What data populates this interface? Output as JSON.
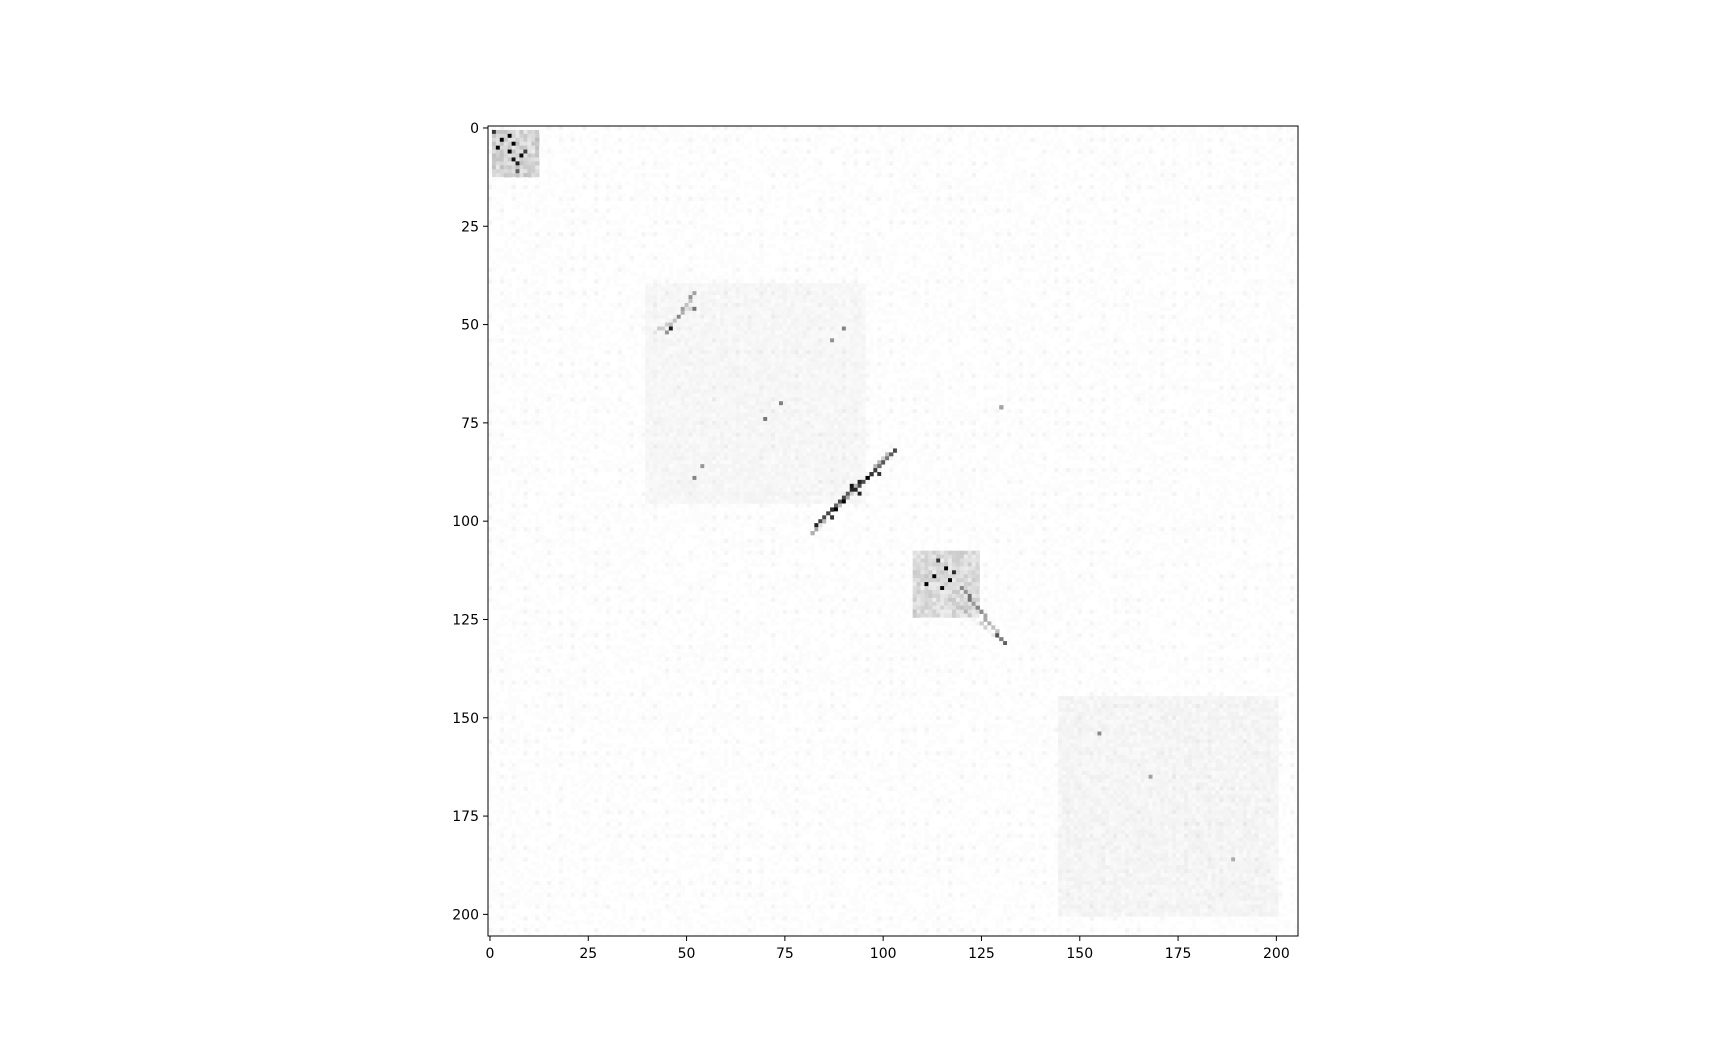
{
  "chart_data": {
    "type": "heatmap",
    "colormap": "Greys",
    "background_color": "#ffffff",
    "axis_color": "#000000",
    "matrix_size": 206,
    "xlim": [
      -0.5,
      205.5
    ],
    "ylim": [
      205.5,
      -0.5
    ],
    "y_axis_inverted": true,
    "grid": false,
    "title": "",
    "xlabel": "",
    "ylabel": "",
    "x_ticks": [
      0,
      25,
      50,
      75,
      100,
      125,
      150,
      175,
      200
    ],
    "y_ticks": [
      0,
      25,
      50,
      75,
      100,
      125,
      150,
      175,
      200
    ],
    "x_tick_labels": [
      "0",
      "25",
      "50",
      "75",
      "100",
      "125",
      "150",
      "175",
      "200"
    ],
    "y_tick_labels": [
      "0",
      "25",
      "50",
      "75",
      "100",
      "125",
      "150",
      "175",
      "200"
    ],
    "value_range": [
      0,
      1
    ],
    "blocks": [
      {
        "rows": [
          1,
          12
        ],
        "cols": [
          1,
          12
        ],
        "intensity": 0.25
      },
      {
        "rows": [
          108,
          124
        ],
        "cols": [
          108,
          124
        ],
        "intensity": 0.2
      },
      {
        "rows": [
          145,
          200
        ],
        "cols": [
          145,
          200
        ],
        "intensity": 0.05
      },
      {
        "rows": [
          40,
          95
        ],
        "cols": [
          40,
          95
        ],
        "intensity": 0.04
      }
    ],
    "diagonal_streaks": [
      {
        "from": [
          82,
          103
        ],
        "to": [
          101,
          83
        ],
        "intensity": 0.85
      },
      {
        "from": [
          117,
          120
        ],
        "to": [
          131,
          131
        ],
        "intensity": 0.45
      },
      {
        "from": [
          42,
          52
        ],
        "to": [
          52,
          45
        ],
        "intensity": 0.4
      }
    ],
    "hotspots": [
      {
        "row": 3,
        "col": 3,
        "value": 0.95
      },
      {
        "row": 5,
        "col": 2,
        "value": 0.9
      },
      {
        "row": 4,
        "col": 6,
        "value": 0.85
      },
      {
        "row": 6,
        "col": 5,
        "value": 0.9
      },
      {
        "row": 7,
        "col": 8,
        "value": 0.8
      },
      {
        "row": 8,
        "col": 6,
        "value": 0.75
      },
      {
        "row": 2,
        "col": 5,
        "value": 0.85
      },
      {
        "row": 9,
        "col": 7,
        "value": 0.7
      },
      {
        "row": 1,
        "col": 1,
        "value": 0.6
      },
      {
        "row": 6,
        "col": 9,
        "value": 0.55
      },
      {
        "row": 11,
        "col": 7,
        "value": 0.45
      },
      {
        "row": 112,
        "col": 116,
        "value": 0.9
      },
      {
        "row": 114,
        "col": 113,
        "value": 0.85
      },
      {
        "row": 116,
        "col": 111,
        "value": 0.9
      },
      {
        "row": 117,
        "col": 115,
        "value": 0.8
      },
      {
        "row": 113,
        "col": 118,
        "value": 0.75
      },
      {
        "row": 110,
        "col": 114,
        "value": 0.7
      },
      {
        "row": 115,
        "col": 117,
        "value": 0.8
      },
      {
        "row": 89,
        "col": 96,
        "value": 0.95
      },
      {
        "row": 91,
        "col": 92,
        "value": 0.9
      },
      {
        "row": 95,
        "col": 90,
        "value": 0.9
      },
      {
        "row": 97,
        "col": 88,
        "value": 0.85
      },
      {
        "row": 88,
        "col": 99,
        "value": 0.8
      },
      {
        "row": 93,
        "col": 94,
        "value": 0.85
      },
      {
        "row": 99,
        "col": 87,
        "value": 0.75
      },
      {
        "row": 90,
        "col": 94,
        "value": 0.8
      },
      {
        "row": 51,
        "col": 46,
        "value": 0.6
      },
      {
        "row": 46,
        "col": 52,
        "value": 0.5
      },
      {
        "row": 51,
        "col": 90,
        "value": 0.45
      },
      {
        "row": 54,
        "col": 87,
        "value": 0.4
      },
      {
        "row": 74,
        "col": 70,
        "value": 0.5
      },
      {
        "row": 70,
        "col": 74,
        "value": 0.45
      },
      {
        "row": 89,
        "col": 52,
        "value": 0.45
      },
      {
        "row": 86,
        "col": 54,
        "value": 0.4
      },
      {
        "row": 71,
        "col": 130,
        "value": 0.35
      },
      {
        "row": 154,
        "col": 155,
        "value": 0.4
      },
      {
        "row": 186,
        "col": 189,
        "value": 0.3
      },
      {
        "row": 165,
        "col": 168,
        "value": 0.3
      }
    ]
  }
}
